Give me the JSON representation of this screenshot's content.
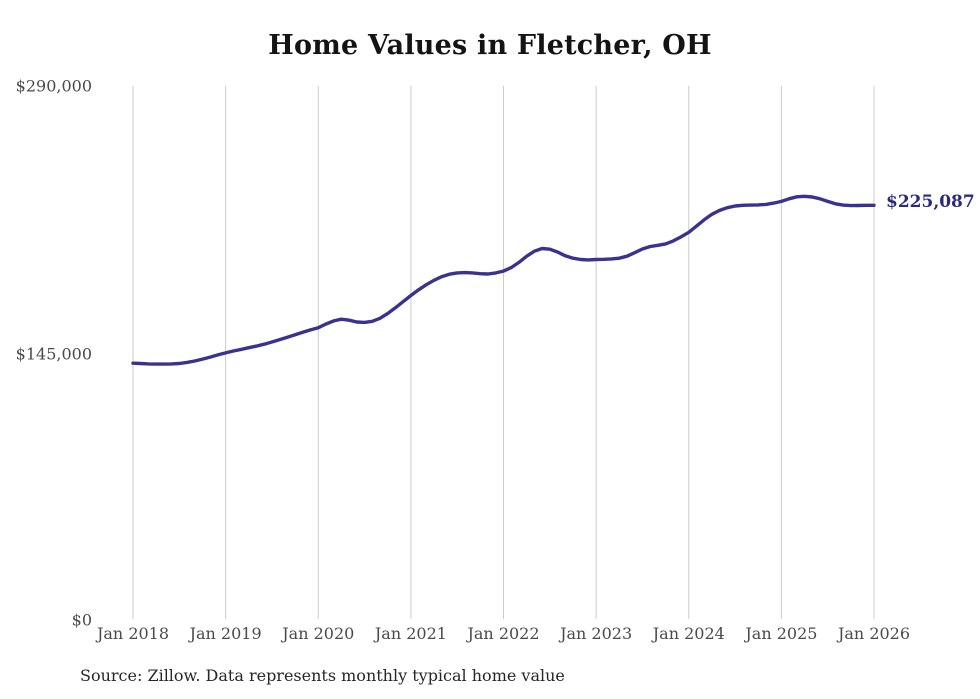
{
  "title": "Home Values in Fletcher, OH",
  "source_note": "Source: Zillow. Data represents monthly typical home value",
  "end_value_label": "$225,087",
  "colors": {
    "line": "#39338f",
    "grid": "#cccccc",
    "title_text": "#141414",
    "axis_text": "#4a4a4a",
    "end_label_text": "#2d2a7d",
    "background": "#ffffff"
  },
  "chart_data": {
    "type": "line",
    "title": "Home Values in Fletcher, OH",
    "xlabel": "",
    "ylabel": "",
    "ylim": [
      0,
      290000
    ],
    "grid": "vertical-only",
    "legend_position": "none",
    "x_interval": "monthly",
    "x_range": [
      "Jan 2018",
      "Jan 2026"
    ],
    "x_tick_labels": [
      "Jan 2018",
      "Jan 2019",
      "Jan 2020",
      "Jan 2021",
      "Jan 2022",
      "Jan 2023",
      "Jan 2024",
      "Jan 2025",
      "Jan 2026"
    ],
    "y_ticks": [
      {
        "label": "$290,000",
        "value": 290000
      },
      {
        "label": "$145,000",
        "value": 145000
      },
      {
        "label": "$0",
        "value": 0
      }
    ],
    "series": [
      {
        "name": "Monthly typical home value",
        "start_month": "Jan 2018",
        "end_month": "Jan 2026",
        "final_value": 225087,
        "values": [
          139200,
          139000,
          138800,
          138700,
          138700,
          138800,
          139000,
          139600,
          140400,
          141400,
          142500,
          143700,
          144800,
          145800,
          146700,
          147600,
          148500,
          149500,
          150700,
          152000,
          153300,
          154700,
          156000,
          157300,
          158500,
          160500,
          162200,
          163100,
          162600,
          161600,
          161400,
          162000,
          163600,
          166200,
          169300,
          172700,
          176000,
          179100,
          181900,
          184300,
          186300,
          187600,
          188300,
          188500,
          188300,
          187900,
          187700,
          188300,
          189300,
          191200,
          194000,
          197400,
          200100,
          201600,
          201200,
          199700,
          197600,
          196300,
          195600,
          195400,
          195600,
          195700,
          195900,
          196300,
          197400,
          199300,
          201300,
          202700,
          203300,
          204100,
          205700,
          207900,
          210400,
          213800,
          217200,
          220200,
          222300,
          223800,
          224700,
          225100,
          225200,
          225300,
          225600,
          226300,
          227200,
          228600,
          229700,
          230000,
          229600,
          228600,
          227200,
          225900,
          225200,
          224900,
          225000,
          225100,
          225087
        ]
      }
    ]
  }
}
